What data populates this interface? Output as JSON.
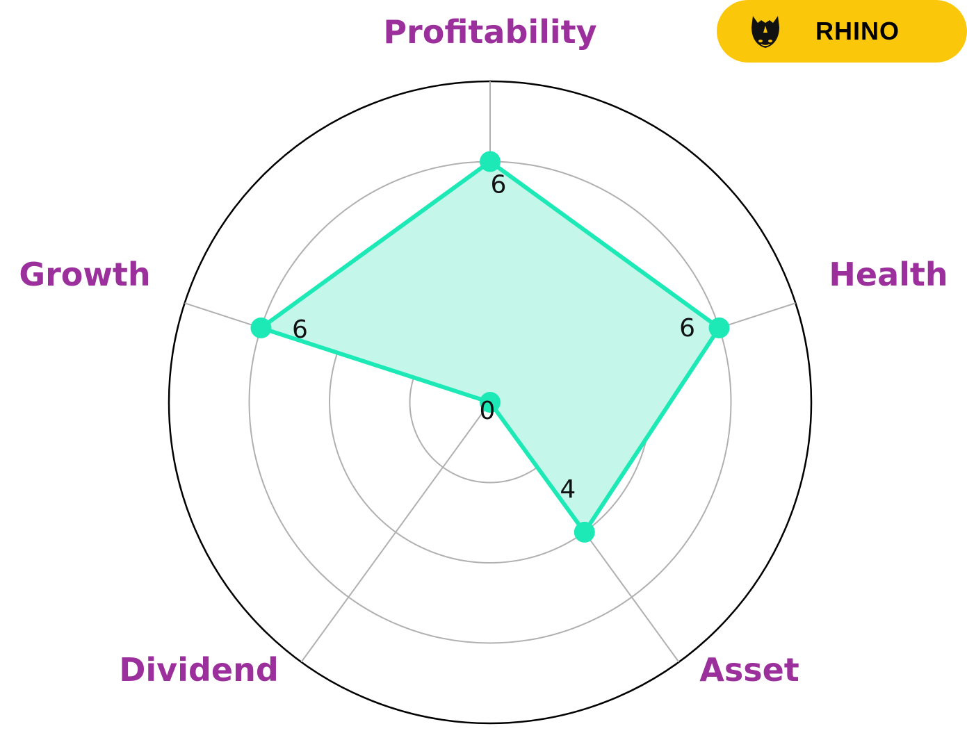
{
  "brand": {
    "name": "RHINO",
    "logo_icon": "rhino-head-icon",
    "badge_color": "#FBC70A"
  },
  "chart_data": {
    "type": "radar",
    "axes": [
      "Profitability",
      "Health",
      "Asset",
      "Dividend",
      "Growth"
    ],
    "values": [
      6,
      6,
      4,
      0,
      6
    ],
    "value_labels": [
      "6",
      "6",
      "4",
      "0",
      "6"
    ],
    "rlim": [
      0,
      8
    ],
    "rings": [
      2,
      4,
      6,
      8
    ],
    "grid": true,
    "series_color": "#1DE9B6",
    "fill_color": "#C4F7E9",
    "label_color": "#9B2F9B",
    "grid_color": "#B0B0B0"
  }
}
